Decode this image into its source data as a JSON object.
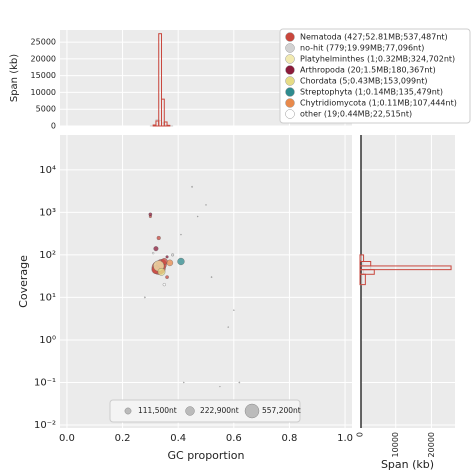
{
  "chart_data": [
    {
      "type": "histogram",
      "orientation": "vertical",
      "ylabel": "Span (kb)",
      "bins": [
        0.3,
        0.31,
        0.32,
        0.33,
        0.34,
        0.35,
        0.36,
        0.37,
        0.38
      ],
      "series": [
        {
          "color": "#d2d2d2",
          "values": [
            60,
            250,
            1900,
            1600,
            900,
            300,
            120,
            40
          ]
        },
        {
          "color": "#c9473d",
          "values": [
            0,
            300,
            1500,
            27500,
            8000,
            1200,
            200,
            0
          ]
        }
      ],
      "ylim": [
        0,
        28600
      ],
      "yticks": [
        0,
        5000,
        10000,
        15000,
        20000,
        25000
      ],
      "grid": true
    },
    {
      "type": "scatter",
      "xlabel": "GC proportion",
      "ylabel": "Coverage",
      "log_y": true,
      "grid": true,
      "xlim": [
        -0.025,
        1.025
      ],
      "xticks": [
        {
          "value": 0,
          "label": "0.0"
        },
        0.2,
        0.4,
        0.6,
        0.8,
        {
          "value": 1,
          "label": "1.0"
        }
      ],
      "ylim": [
        0.0085,
        66000
      ],
      "yticks": [
        {
          "value": 0.01,
          "label": "10⁻²"
        },
        {
          "value": 0.1,
          "label": "10⁻¹"
        },
        {
          "value": 1,
          "label": "10⁰"
        },
        {
          "value": 10,
          "label": "10¹"
        },
        {
          "value": 100,
          "label": "10²"
        },
        {
          "value": 1000,
          "label": "10³"
        },
        {
          "value": 10000,
          "label": "10⁴"
        }
      ],
      "legend": "upper right",
      "series": [
        {
          "name": "Nematoda (427;52.81MB;537,487nt)",
          "color": "#c9473d",
          "x": [
            0.33,
            0.34,
            0.32,
            0.35,
            0.3,
            0.33,
            0.36
          ],
          "values": [
            50,
            60,
            45,
            70,
            800,
            250,
            30
          ],
          "sizes": [
            537487,
            300000,
            200000,
            120000,
            20000,
            40000,
            30000
          ]
        },
        {
          "name": "no-hit (779;19.99MB;77,096nt)",
          "color": "#d2d2d2",
          "x": [
            0.45,
            0.5,
            0.38,
            0.6,
            0.62,
            0.42,
            0.55,
            0.28,
            0.41,
            0.58,
            0.52,
            0.47
          ],
          "values": [
            4000,
            1500,
            100,
            5,
            0.1,
            0.1,
            0.08,
            10,
            300,
            2,
            30,
            800
          ],
          "sizes": [
            5000,
            3000,
            20000,
            3000,
            4000,
            3000,
            2000,
            5000,
            3000,
            3000,
            4000,
            3000
          ]
        },
        {
          "name": "Platyhelminthes (1;0.32MB;324,702nt)",
          "color": "#f2eab0",
          "x": [
            0.33
          ],
          "values": [
            55
          ],
          "sizes": [
            324702
          ]
        },
        {
          "name": "Arthropoda (20;1.5MB;180,367nt)",
          "color": "#8b1c3b",
          "x": [
            0.32,
            0.3,
            0.36
          ],
          "values": [
            140,
            900,
            90
          ],
          "sizes": [
            60000,
            30000,
            20000
          ]
        },
        {
          "name": "Chordata (5;0.43MB;153,099nt)",
          "color": "#e6dc86",
          "x": [
            0.34
          ],
          "values": [
            40
          ],
          "sizes": [
            153099
          ]
        },
        {
          "name": "Streptophyta (1;0.14MB;135,479nt)",
          "color": "#2f8b8e",
          "x": [
            0.41
          ],
          "values": [
            70
          ],
          "sizes": [
            135479
          ]
        },
        {
          "name": "Chytridiomycota (1;0.11MB;107,444nt)",
          "color": "#e88a4c",
          "x": [
            0.37
          ],
          "values": [
            65
          ],
          "sizes": [
            107444
          ]
        },
        {
          "name": "other (19;0.44MB;22,515nt)",
          "color": "#ffffff",
          "x": [
            0.35,
            0.31
          ],
          "values": [
            20,
            110
          ],
          "sizes": [
            22515,
            10000
          ]
        }
      ],
      "size_legend": {
        "values": [
          111500,
          222900,
          557200
        ],
        "labels": [
          "111,500nt",
          "222,900nt",
          "557,200nt"
        ]
      }
    },
    {
      "type": "histogram",
      "orientation": "horizontal",
      "xlabel": "Span (kb)",
      "log_y": true,
      "bins": [
        20,
        35,
        45,
        55,
        70,
        100
      ],
      "series": [
        {
          "color": "#d2d2d2",
          "values": [
            500,
            1000,
            3000,
            800,
            300
          ]
        },
        {
          "color": "#c9473d",
          "values": [
            1500,
            4000,
            25500,
            3000,
            1000
          ]
        }
      ],
      "ylim": [
        0.0085,
        66000
      ],
      "xlim": [
        0,
        26600
      ],
      "xticks": [
        0,
        10000,
        20000
      ],
      "grid": true
    }
  ]
}
